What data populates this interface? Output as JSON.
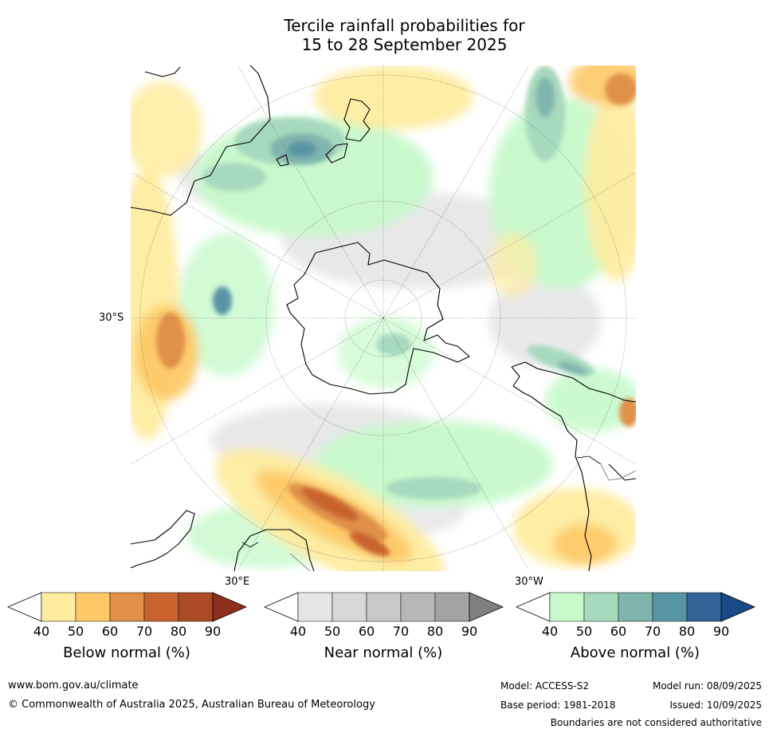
{
  "title": {
    "line1": "Tercile rainfall probabilities for",
    "line2": "15 to 28 September 2025"
  },
  "map": {
    "projection": "south-polar-stereographic",
    "lat_label": "30°S",
    "lon_label_east": "30°E",
    "lon_label_west": "30°W"
  },
  "colorbars": [
    {
      "id": "below",
      "label": "Below normal (%)",
      "ticks": [
        "40",
        "50",
        "60",
        "70",
        "80",
        "90"
      ],
      "colors": [
        "#ffffff",
        "#feec9f",
        "#fdc967",
        "#e09048",
        "#c8632e",
        "#ad4a26",
        "#8e2f1c"
      ]
    },
    {
      "id": "near",
      "label": "Near normal (%)",
      "ticks": [
        "40",
        "50",
        "60",
        "70",
        "80",
        "90"
      ],
      "colors": [
        "#ffffff",
        "#e5e5e5",
        "#d7d7d7",
        "#c9c9c9",
        "#b7b7b7",
        "#a3a3a3",
        "#808080"
      ]
    },
    {
      "id": "above",
      "label": "Above normal (%)",
      "ticks": [
        "40",
        "50",
        "60",
        "70",
        "80",
        "90"
      ],
      "colors": [
        "#ffffff",
        "#c7f9cb",
        "#a7d9bd",
        "#80b5ae",
        "#5895a4",
        "#316598",
        "#174a86"
      ]
    }
  ],
  "footer": {
    "url": "www.bom.gov.au/climate",
    "copyright": "© Commonwealth of Australia 2025, Australian Bureau of Meteorology",
    "model": "Model: ACCESS-S2",
    "base_period": "Base period: 1981-2018",
    "model_run": "Model run: 08/09/2025",
    "issued": "Issued: 10/09/2025",
    "disclaimer": "Boundaries are not considered authoritative"
  }
}
